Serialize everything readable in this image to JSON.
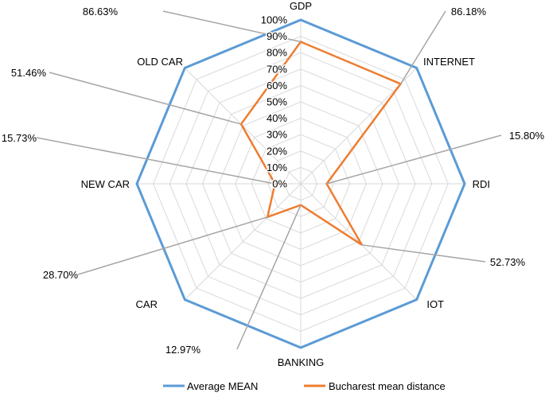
{
  "chart_data": {
    "type": "radar",
    "axes": [
      "GDP",
      "INTERNET",
      "RDI",
      "IOT",
      "BANKING",
      "CAR",
      "NEW CAR",
      "OLD CAR"
    ],
    "r_ticks": [
      "0%",
      "10%",
      "20%",
      "30%",
      "40%",
      "50%",
      "60%",
      "70%",
      "80%",
      "90%",
      "100%"
    ],
    "rlim": [
      0,
      100
    ],
    "grid": true,
    "series": [
      {
        "name": "Average MEAN",
        "color": "#5B9BD5",
        "values": [
          100,
          100,
          100,
          100,
          100,
          100,
          100,
          100
        ]
      },
      {
        "name": "Bucharest mean distance",
        "color": "#ED7D31",
        "values": [
          86.63,
          86.18,
          15.8,
          52.73,
          12.97,
          28.7,
          15.73,
          51.46
        ]
      }
    ],
    "data_labels": [
      "86.63%",
      "86.18%",
      "15.80%",
      "52.73%",
      "12.97%",
      "28.70%",
      "15.73%",
      "51.46%"
    ],
    "legend_position": "bottom"
  }
}
